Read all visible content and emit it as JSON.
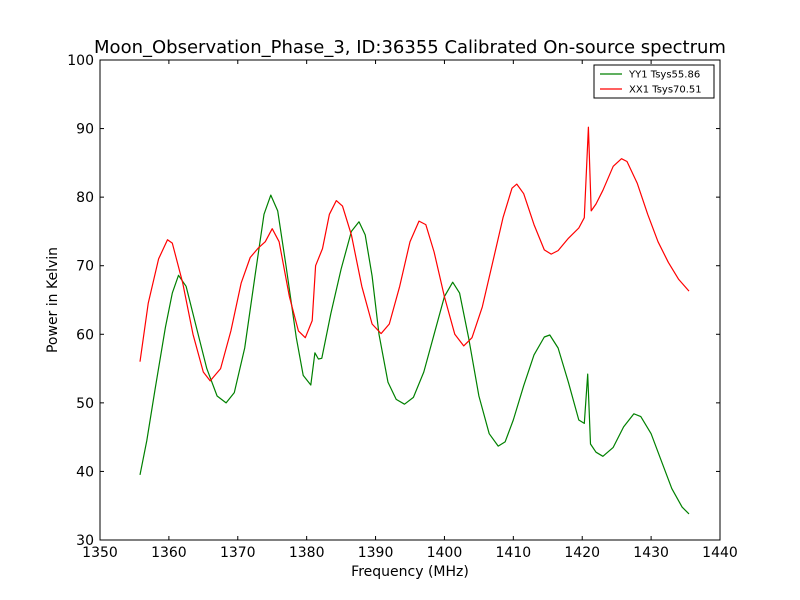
{
  "chart_data": {
    "type": "line",
    "title": "Moon_Observation_Phase_3, ID:36355 Calibrated On-source spectrum",
    "xlabel": "Frequency (MHz)",
    "ylabel": "Power in Kelvin",
    "xlim": [
      1350,
      1440
    ],
    "ylim": [
      30,
      100
    ],
    "xticks": [
      1350,
      1360,
      1370,
      1380,
      1390,
      1400,
      1410,
      1420,
      1430,
      1440
    ],
    "yticks": [
      30,
      40,
      50,
      60,
      70,
      80,
      90,
      100
    ],
    "grid": false,
    "legend_position": "top-right",
    "series": [
      {
        "name": "YY1 Tsys55.86",
        "color": "#008000",
        "points": [
          [
            1355.8,
            39.5
          ],
          [
            1356.8,
            44.5
          ],
          [
            1358.0,
            52.0
          ],
          [
            1359.5,
            61.0
          ],
          [
            1360.5,
            66.0
          ],
          [
            1361.4,
            68.6
          ],
          [
            1362.5,
            67.0
          ],
          [
            1364.0,
            61.0
          ],
          [
            1365.5,
            55.0
          ],
          [
            1367.0,
            51.0
          ],
          [
            1368.3,
            50.0
          ],
          [
            1369.5,
            51.5
          ],
          [
            1371.0,
            58.0
          ],
          [
            1372.5,
            68.5
          ],
          [
            1373.8,
            77.5
          ],
          [
            1374.8,
            80.3
          ],
          [
            1375.8,
            78.0
          ],
          [
            1377.0,
            70.0
          ],
          [
            1378.5,
            59.5
          ],
          [
            1379.5,
            54.0
          ],
          [
            1380.6,
            52.6
          ],
          [
            1381.2,
            57.3
          ],
          [
            1381.7,
            56.4
          ],
          [
            1382.2,
            56.5
          ],
          [
            1383.5,
            63.0
          ],
          [
            1385.0,
            69.5
          ],
          [
            1386.5,
            75.0
          ],
          [
            1387.6,
            76.4
          ],
          [
            1388.5,
            74.5
          ],
          [
            1389.5,
            68.5
          ],
          [
            1390.5,
            60.0
          ],
          [
            1391.8,
            53.0
          ],
          [
            1393.0,
            50.5
          ],
          [
            1394.2,
            49.8
          ],
          [
            1395.5,
            50.8
          ],
          [
            1397.0,
            54.5
          ],
          [
            1398.5,
            60.0
          ],
          [
            1400.0,
            65.5
          ],
          [
            1401.2,
            67.6
          ],
          [
            1402.2,
            66.0
          ],
          [
            1403.5,
            59.5
          ],
          [
            1405.0,
            51.0
          ],
          [
            1406.5,
            45.5
          ],
          [
            1407.8,
            43.7
          ],
          [
            1408.8,
            44.3
          ],
          [
            1410.0,
            47.5
          ],
          [
            1411.5,
            52.5
          ],
          [
            1413.0,
            57.0
          ],
          [
            1414.5,
            59.6
          ],
          [
            1415.3,
            59.9
          ],
          [
            1416.5,
            58.0
          ],
          [
            1418.0,
            53.0
          ],
          [
            1419.5,
            47.5
          ],
          [
            1420.3,
            47.0
          ],
          [
            1420.8,
            54.2
          ],
          [
            1421.2,
            44.0
          ],
          [
            1422.0,
            42.8
          ],
          [
            1423.0,
            42.2
          ],
          [
            1424.5,
            43.5
          ],
          [
            1426.0,
            46.5
          ],
          [
            1427.5,
            48.4
          ],
          [
            1428.5,
            48.0
          ],
          [
            1430.0,
            45.5
          ],
          [
            1431.5,
            41.5
          ],
          [
            1433.0,
            37.5
          ],
          [
            1434.5,
            34.8
          ],
          [
            1435.5,
            33.8
          ]
        ]
      },
      {
        "name": "XX1 Tsys70.51",
        "color": "#ff0000",
        "points": [
          [
            1355.8,
            56.0
          ],
          [
            1357.0,
            64.5
          ],
          [
            1358.5,
            71.0
          ],
          [
            1359.8,
            73.8
          ],
          [
            1360.5,
            73.3
          ],
          [
            1362.0,
            67.5
          ],
          [
            1363.5,
            60.0
          ],
          [
            1365.0,
            54.5
          ],
          [
            1366.0,
            53.2
          ],
          [
            1367.5,
            55.0
          ],
          [
            1369.0,
            60.5
          ],
          [
            1370.5,
            67.5
          ],
          [
            1371.8,
            71.2
          ],
          [
            1373.0,
            72.6
          ],
          [
            1374.0,
            73.5
          ],
          [
            1375.0,
            75.4
          ],
          [
            1376.0,
            73.5
          ],
          [
            1377.5,
            65.5
          ],
          [
            1378.8,
            60.5
          ],
          [
            1379.8,
            59.5
          ],
          [
            1380.8,
            62.0
          ],
          [
            1381.3,
            70.0
          ],
          [
            1382.3,
            72.5
          ],
          [
            1383.3,
            77.5
          ],
          [
            1384.3,
            79.5
          ],
          [
            1385.2,
            78.7
          ],
          [
            1386.5,
            74.5
          ],
          [
            1388.0,
            67.0
          ],
          [
            1389.5,
            61.5
          ],
          [
            1390.8,
            60.1
          ],
          [
            1392.0,
            61.5
          ],
          [
            1393.5,
            67.0
          ],
          [
            1395.0,
            73.5
          ],
          [
            1396.3,
            76.5
          ],
          [
            1397.3,
            76.0
          ],
          [
            1398.5,
            72.0
          ],
          [
            1400.0,
            65.5
          ],
          [
            1401.5,
            60.0
          ],
          [
            1402.8,
            58.3
          ],
          [
            1404.0,
            59.5
          ],
          [
            1405.5,
            64.0
          ],
          [
            1407.0,
            70.5
          ],
          [
            1408.5,
            77.0
          ],
          [
            1409.8,
            81.3
          ],
          [
            1410.5,
            81.9
          ],
          [
            1411.5,
            80.5
          ],
          [
            1413.0,
            76.0
          ],
          [
            1414.5,
            72.3
          ],
          [
            1415.5,
            71.7
          ],
          [
            1416.5,
            72.2
          ],
          [
            1418.0,
            74.0
          ],
          [
            1419.5,
            75.5
          ],
          [
            1420.3,
            77.0
          ],
          [
            1420.9,
            90.2
          ],
          [
            1421.3,
            78.0
          ],
          [
            1422.0,
            79.0
          ],
          [
            1423.0,
            81.0
          ],
          [
            1424.5,
            84.5
          ],
          [
            1425.7,
            85.6
          ],
          [
            1426.5,
            85.2
          ],
          [
            1428.0,
            82.0
          ],
          [
            1429.5,
            77.5
          ],
          [
            1431.0,
            73.5
          ],
          [
            1432.5,
            70.5
          ],
          [
            1434.0,
            68.0
          ],
          [
            1435.5,
            66.3
          ]
        ]
      }
    ]
  }
}
